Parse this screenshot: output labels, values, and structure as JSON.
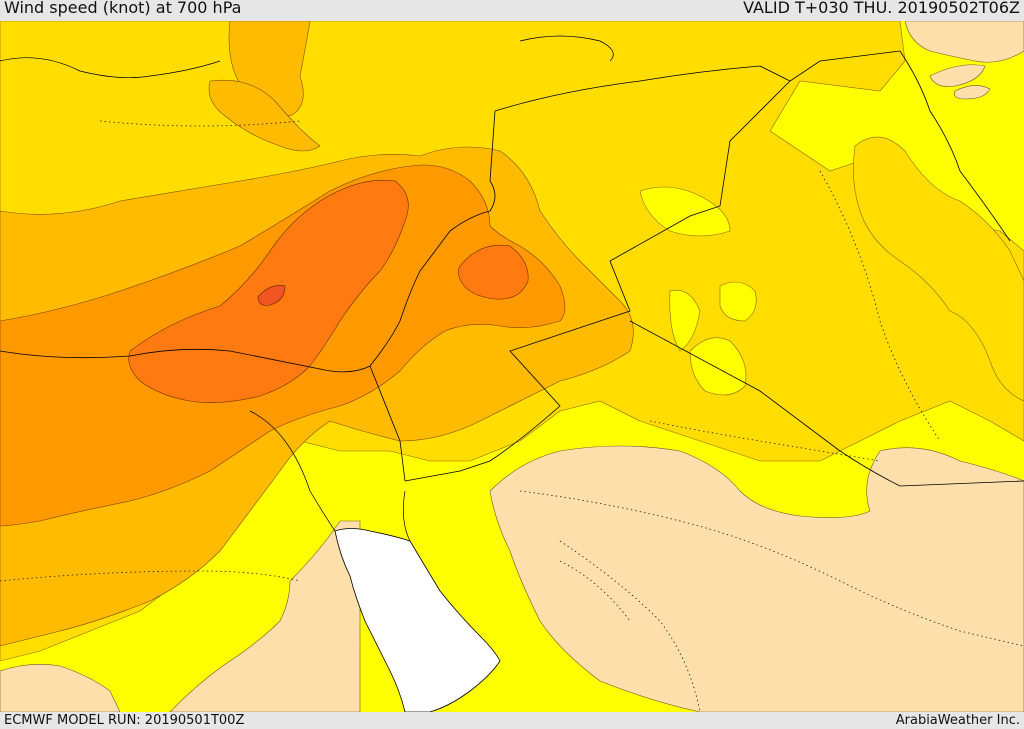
{
  "header": {
    "title": "Wind speed (knot) at 700 hPa",
    "valid": "VALID T+030 THU. 20190502T06Z"
  },
  "footer": {
    "model_run": "ECMWF MODEL RUN: 20190501T00Z",
    "credit": "ArabiaWeather Inc."
  },
  "colors": {
    "band_lowest": "#fcdfaa",
    "band_yellow": "#ffff00",
    "band_gold": "#ffdd00",
    "band_amber": "#ffbb00",
    "band_orange": "#ff9900",
    "band_darkorange": "#ff7a10",
    "band_red": "#f25522",
    "sea_white": "#ffffff"
  }
}
